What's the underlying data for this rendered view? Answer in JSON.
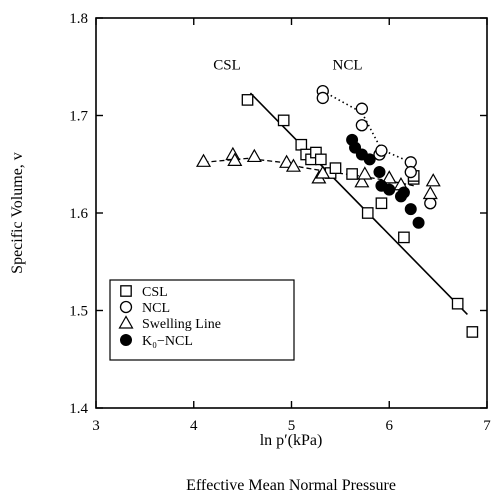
{
  "chart_data": {
    "type": "scatter",
    "xlabel": "ln p′(kPa)",
    "xlabel2": "Effective Mean Normal Pressure",
    "ylabel": "Specific Volume, v",
    "xlim": [
      3,
      7
    ],
    "ylim": [
      1.4,
      1.8
    ],
    "xticks": [
      3,
      4,
      5,
      6,
      7
    ],
    "yticks": [
      1.4,
      1.5,
      1.6,
      1.7,
      1.8
    ],
    "xtick_labels": [
      "3",
      "4",
      "5",
      "6",
      "7"
    ],
    "ytick_labels": [
      "1.4",
      "1.5",
      "1.6",
      "1.7",
      "1.8"
    ],
    "grid": false,
    "legend_position": "lower-left",
    "annotations": [
      {
        "text": "CSL",
        "x": 4.2,
        "y": 1.747
      },
      {
        "text": "NCL",
        "x": 5.42,
        "y": 1.747
      }
    ],
    "lines": [
      {
        "name": "CSL line",
        "style": "solid",
        "x": [
          4.58,
          6.8
        ],
        "y": [
          1.723,
          1.496
        ]
      },
      {
        "name": "NCL dotted",
        "style": "dotted",
        "x": [
          5.32,
          5.72,
          5.92,
          6.22
        ],
        "y": [
          1.725,
          1.703,
          1.665,
          1.652
        ]
      },
      {
        "name": "Swelling dashed",
        "style": "dashed",
        "x": [
          4.1,
          4.55,
          4.9,
          5.1,
          5.4,
          5.7,
          6.0,
          6.25
        ],
        "y": [
          1.652,
          1.656,
          1.652,
          1.647,
          1.642,
          1.638,
          1.633,
          1.628
        ]
      }
    ],
    "series": [
      {
        "name": "CSL",
        "marker": "square",
        "x": [
          4.55,
          4.92,
          5.1,
          5.15,
          5.2,
          5.25,
          5.3,
          5.4,
          5.45,
          5.62,
          5.78,
          5.92,
          6.15,
          6.25,
          6.25,
          6.7,
          6.85
        ],
        "y": [
          1.716,
          1.695,
          1.67,
          1.66,
          1.655,
          1.662,
          1.655,
          1.641,
          1.646,
          1.64,
          1.6,
          1.61,
          1.575,
          1.635,
          1.638,
          1.507,
          1.478
        ]
      },
      {
        "name": "NCL",
        "marker": "circle-open",
        "x": [
          5.32,
          5.32,
          5.72,
          5.72,
          5.9,
          5.92,
          6.22,
          6.22,
          6.42
        ],
        "y": [
          1.725,
          1.718,
          1.707,
          1.69,
          1.66,
          1.664,
          1.652,
          1.642,
          1.61
        ]
      },
      {
        "name": "Swelling Line",
        "marker": "triangle",
        "x": [
          4.1,
          4.4,
          4.42,
          4.62,
          4.95,
          5.02,
          5.28,
          5.32,
          5.72,
          5.75,
          6.0,
          6.12,
          6.42,
          6.45
        ],
        "y": [
          1.653,
          1.66,
          1.654,
          1.658,
          1.652,
          1.648,
          1.636,
          1.641,
          1.632,
          1.64,
          1.636,
          1.629,
          1.62,
          1.633
        ]
      },
      {
        "name": "K₀−NCL",
        "marker": "circle-filled",
        "x": [
          5.62,
          5.65,
          5.72,
          5.8,
          5.9,
          5.92,
          6.0,
          6.12,
          6.15,
          6.22,
          6.3
        ],
        "y": [
          1.675,
          1.667,
          1.66,
          1.655,
          1.642,
          1.628,
          1.624,
          1.617,
          1.621,
          1.604,
          1.59
        ]
      }
    ],
    "legend": [
      "CSL",
      "NCL",
      "Swelling Line",
      "K₀−NCL"
    ]
  }
}
